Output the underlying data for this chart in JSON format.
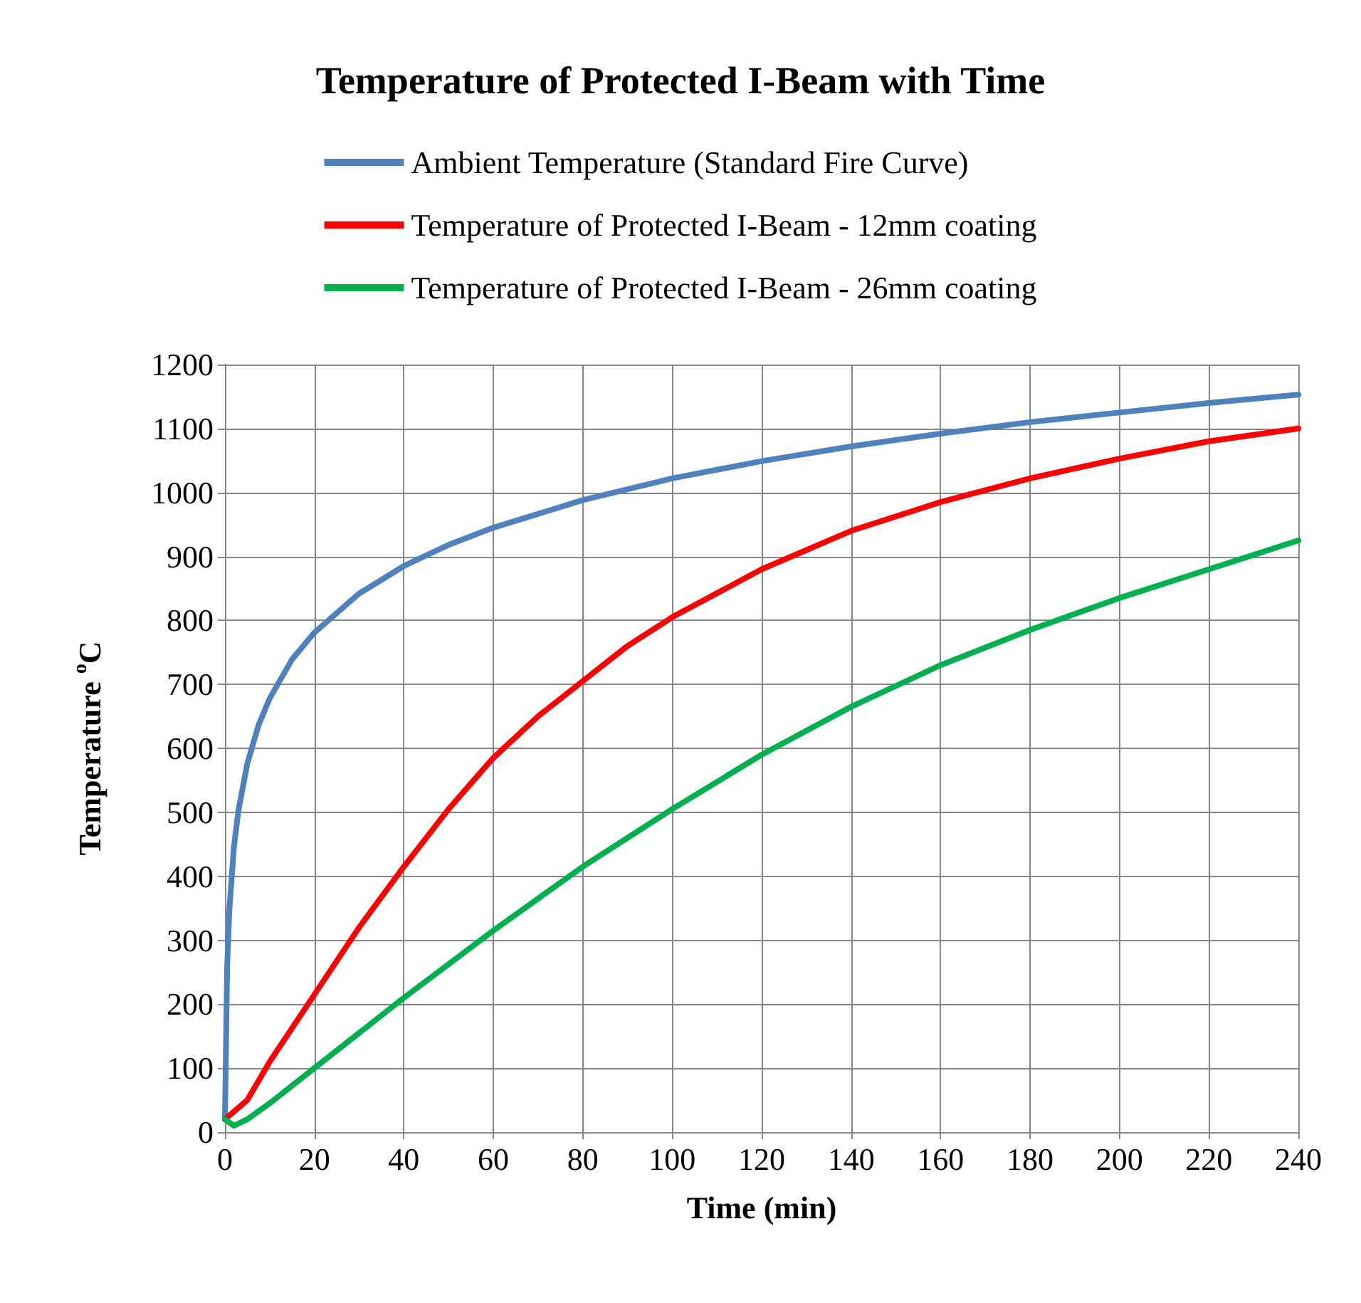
{
  "chart_data": {
    "type": "line",
    "title": "Temperature of Protected I-Beam with Time",
    "xlabel": "Time (min)",
    "ylabel": "Temperature $^{o}$C",
    "xlim": [
      0,
      240
    ],
    "xticks": [
      0,
      20,
      40,
      60,
      80,
      100,
      120,
      140,
      160,
      180,
      200,
      220,
      240
    ],
    "ylim": [
      0,
      1200
    ],
    "yticks": [
      0,
      100,
      200,
      300,
      400,
      500,
      600,
      700,
      800,
      900,
      1000,
      1100,
      1200
    ],
    "grid": true,
    "legend": "top",
    "marker": "none",
    "line_style": "solid",
    "series": [
      {
        "name": "Ambient Temperature (Standard Fire Curve)",
        "color": "#4f81bd",
        "x": [
          0,
          0.5,
          1,
          2,
          3,
          5,
          7.5,
          10,
          15,
          20,
          30,
          40,
          50,
          60,
          80,
          100,
          120,
          140,
          160,
          180,
          200,
          220,
          240
        ],
        "values": [
          20,
          261,
          349,
          445,
          502,
          576,
          636,
          678,
          739,
          781,
          842,
          885,
          918,
          945,
          988,
          1022,
          1049,
          1072,
          1092,
          1110,
          1125,
          1140,
          1153
        ]
      },
      {
        "name": "Temperature of Protected I-Beam - 12mm coating",
        "color": "#ff0000",
        "x": [
          0,
          5,
          10,
          20,
          30,
          40,
          50,
          60,
          70,
          80,
          90,
          100,
          120,
          140,
          160,
          180,
          200,
          220,
          240
        ],
        "values": [
          20,
          50,
          110,
          215,
          320,
          415,
          505,
          585,
          650,
          705,
          760,
          805,
          880,
          940,
          985,
          1022,
          1053,
          1080,
          1100
        ]
      },
      {
        "name": "Temperature of Protected I-Beam - 26mm coating",
        "color": "#00b050",
        "x": [
          0,
          2,
          5,
          10,
          20,
          30,
          40,
          60,
          80,
          100,
          120,
          140,
          160,
          180,
          200,
          220,
          240
        ],
        "values": [
          20,
          10,
          20,
          45,
          100,
          155,
          210,
          315,
          415,
          505,
          590,
          665,
          730,
          785,
          835,
          880,
          925
        ]
      }
    ]
  }
}
